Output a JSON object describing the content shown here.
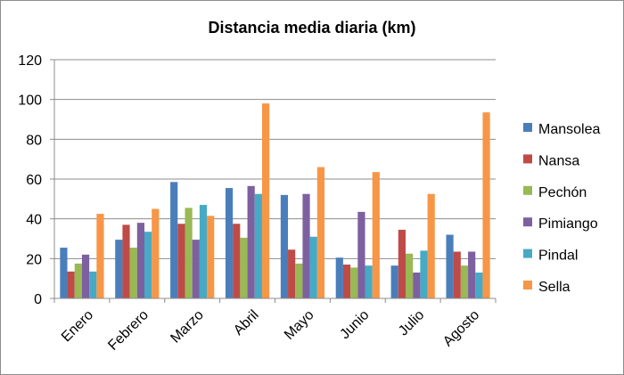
{
  "chart_data": {
    "type": "bar",
    "title": "Distancia media diaria (km)",
    "xlabel": "",
    "ylabel": "",
    "ylim": [
      0,
      120
    ],
    "yticks": [
      0,
      20,
      40,
      60,
      80,
      100,
      120
    ],
    "grid": true,
    "legend_position": "right",
    "categories": [
      "Enero",
      "Febrero",
      "Marzo",
      "Abril",
      "Mayo",
      "Junio",
      "Julio",
      "Agosto"
    ],
    "series": [
      {
        "name": "Mansolea",
        "color": "#4a7ebb",
        "values": [
          25.5,
          29.5,
          58.5,
          55.5,
          52,
          20.5,
          16.5,
          32
        ]
      },
      {
        "name": "Nansa",
        "color": "#be4b48",
        "values": [
          13.5,
          37,
          37.5,
          37.5,
          24.5,
          17,
          34.5,
          23.5
        ]
      },
      {
        "name": "Pechón",
        "color": "#98b954",
        "values": [
          17.5,
          25.5,
          45.5,
          30.5,
          17.5,
          15.5,
          22.5,
          16.5
        ]
      },
      {
        "name": "Pimiango",
        "color": "#7d60a0",
        "values": [
          22,
          38,
          29.5,
          56.5,
          52.5,
          43.5,
          13,
          23.5
        ]
      },
      {
        "name": "Pindal",
        "color": "#46aac5",
        "values": [
          13.5,
          33.5,
          47,
          52.5,
          31,
          16.5,
          24,
          13
        ]
      },
      {
        "name": "Sella",
        "color": "#f79646",
        "values": [
          42.5,
          45,
          41.5,
          98,
          66,
          63.5,
          52.5,
          93.5
        ]
      }
    ]
  }
}
